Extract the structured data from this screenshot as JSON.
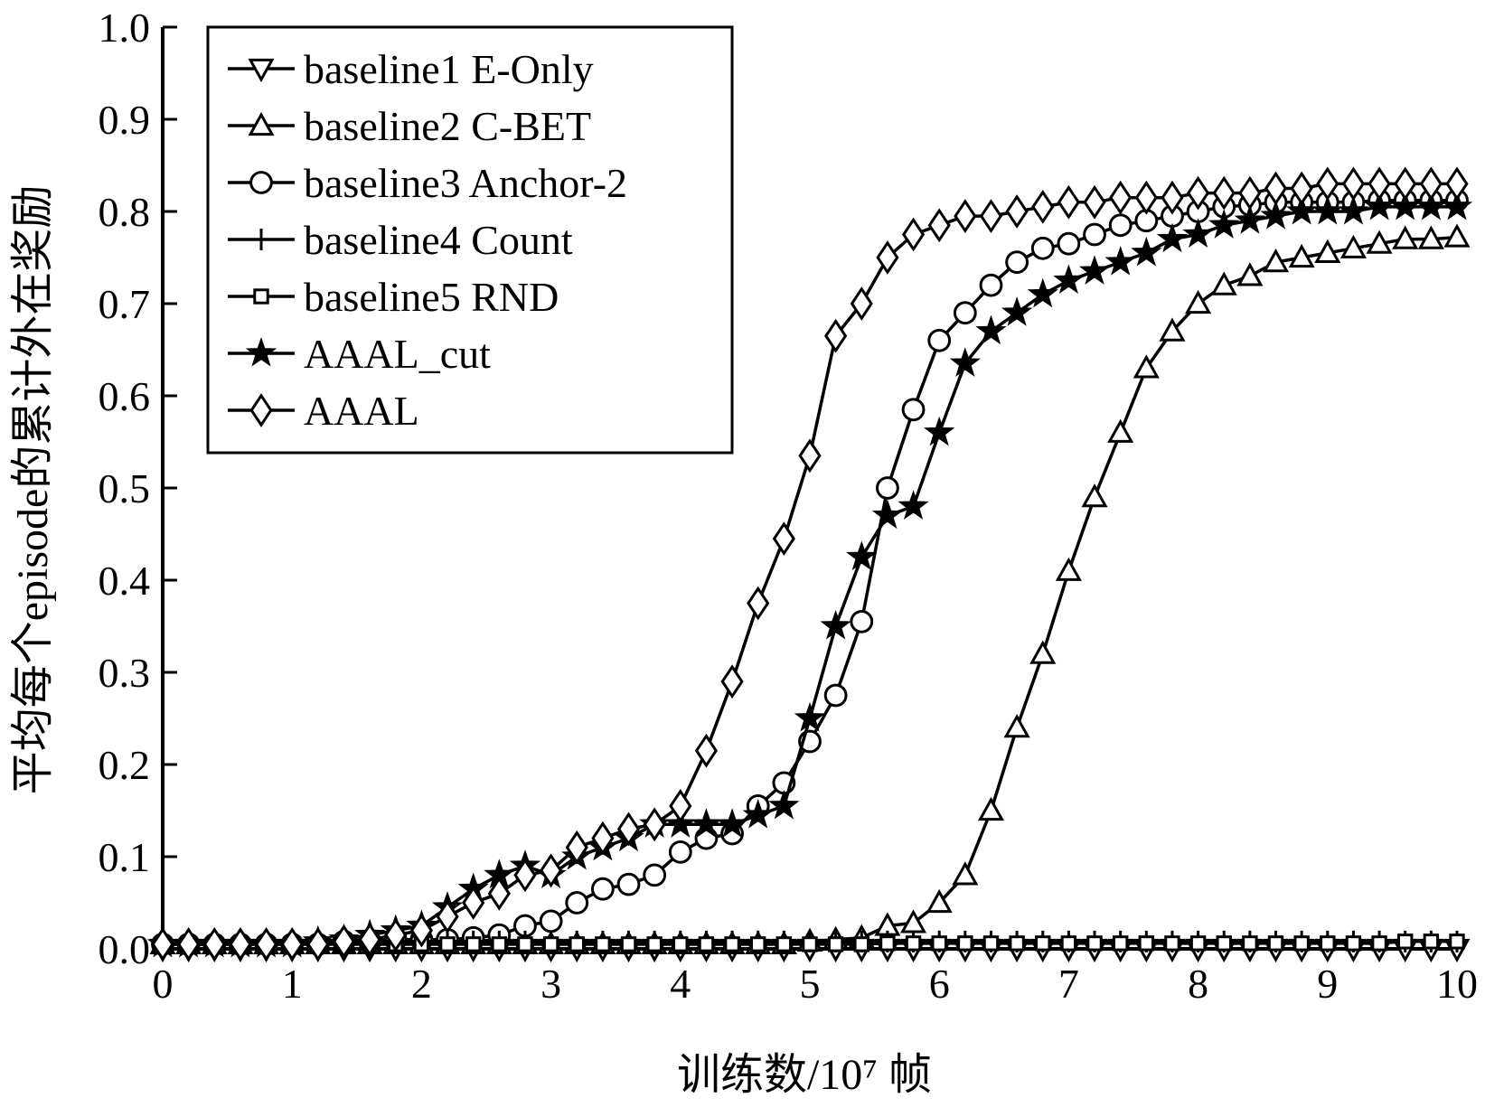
{
  "chart_data": {
    "type": "line",
    "xlabel": "训练数/10⁷ 帧",
    "ylabel": "平均每个episode的累计外在奖励",
    "xlim": [
      0,
      10
    ],
    "ylim": [
      0,
      1.0
    ],
    "x_ticks": [
      "0",
      "1",
      "2",
      "3",
      "4",
      "5",
      "6",
      "7",
      "8",
      "9",
      "10"
    ],
    "y_ticks": [
      "0.0",
      "0.1",
      "0.2",
      "0.3",
      "0.4",
      "0.5",
      "0.6",
      "0.7",
      "0.8",
      "0.9",
      "1.0"
    ],
    "grid": false,
    "legend_position": "top-left",
    "x": [
      0,
      0.2,
      0.4,
      0.6,
      0.8,
      1.0,
      1.2,
      1.4,
      1.6,
      1.8,
      2.0,
      2.2,
      2.4,
      2.6,
      2.8,
      3.0,
      3.2,
      3.4,
      3.6,
      3.8,
      4.0,
      4.2,
      4.4,
      4.6,
      4.8,
      5.0,
      5.2,
      5.4,
      5.6,
      5.8,
      6.0,
      6.2,
      6.4,
      6.6,
      6.8,
      7.0,
      7.2,
      7.4,
      7.6,
      7.8,
      8.0,
      8.2,
      8.4,
      8.6,
      8.8,
      9.0,
      9.2,
      9.4,
      9.6,
      9.8,
      10.0
    ],
    "series": [
      {
        "name": "baseline1 E-Only",
        "marker": "triangle-down",
        "values": [
          0.0,
          0.0,
          0.0,
          0.0,
          0.0,
          0.0,
          0.0,
          0.0,
          0.0,
          0.0,
          0.0,
          0.0,
          0.0,
          0.0,
          0.0,
          0.0,
          0.0,
          0.0,
          0.0,
          0.0,
          0.0,
          0.0,
          0.0,
          0.0,
          0.0,
          0.0,
          0.0,
          0.0,
          0.0,
          0.0,
          0.0,
          0.0,
          0.0,
          0.0,
          0.0,
          0.0,
          0.0,
          0.0,
          0.0,
          0.0,
          0.0,
          0.0,
          0.0,
          0.0,
          0.0,
          0.0,
          0.0,
          0.0,
          0.0,
          0.0,
          0.0
        ]
      },
      {
        "name": "baseline2 C-BET",
        "marker": "triangle-up",
        "values": [
          0.005,
          0.005,
          0.005,
          0.005,
          0.005,
          0.005,
          0.005,
          0.005,
          0.005,
          0.005,
          0.005,
          0.005,
          0.005,
          0.005,
          0.005,
          0.005,
          0.005,
          0.005,
          0.005,
          0.005,
          0.005,
          0.005,
          0.005,
          0.005,
          0.005,
          0.008,
          0.01,
          0.012,
          0.025,
          0.028,
          0.05,
          0.08,
          0.15,
          0.24,
          0.32,
          0.41,
          0.49,
          0.56,
          0.63,
          0.67,
          0.7,
          0.72,
          0.73,
          0.745,
          0.75,
          0.755,
          0.76,
          0.765,
          0.77,
          0.77,
          0.772
        ]
      },
      {
        "name": "baseline3 Anchor-2",
        "marker": "circle",
        "values": [
          0.005,
          0.005,
          0.005,
          0.005,
          0.005,
          0.005,
          0.005,
          0.008,
          0.008,
          0.01,
          0.01,
          0.01,
          0.012,
          0.015,
          0.025,
          0.03,
          0.05,
          0.065,
          0.07,
          0.08,
          0.105,
          0.12,
          0.125,
          0.155,
          0.18,
          0.225,
          0.275,
          0.355,
          0.5,
          0.585,
          0.66,
          0.69,
          0.72,
          0.745,
          0.76,
          0.765,
          0.775,
          0.785,
          0.79,
          0.795,
          0.8,
          0.805,
          0.807,
          0.81,
          0.81,
          0.81,
          0.81,
          0.812,
          0.812,
          0.812,
          0.812
        ]
      },
      {
        "name": "baseline4 Count",
        "marker": "plus",
        "values": [
          0.008,
          0.008,
          0.008,
          0.008,
          0.008,
          0.008,
          0.008,
          0.008,
          0.008,
          0.008,
          0.008,
          0.008,
          0.008,
          0.008,
          0.008,
          0.008,
          0.008,
          0.008,
          0.008,
          0.008,
          0.008,
          0.008,
          0.008,
          0.008,
          0.008,
          0.008,
          0.008,
          0.008,
          0.008,
          0.008,
          0.008,
          0.008,
          0.008,
          0.008,
          0.008,
          0.008,
          0.008,
          0.008,
          0.008,
          0.008,
          0.008,
          0.008,
          0.008,
          0.008,
          0.008,
          0.008,
          0.008,
          0.008,
          0.008,
          0.008,
          0.008
        ]
      },
      {
        "name": "baseline5 RND",
        "marker": "square",
        "values": [
          0.005,
          0.005,
          0.005,
          0.005,
          0.005,
          0.005,
          0.005,
          0.005,
          0.005,
          0.005,
          0.005,
          0.005,
          0.005,
          0.005,
          0.005,
          0.005,
          0.005,
          0.005,
          0.005,
          0.005,
          0.005,
          0.005,
          0.005,
          0.005,
          0.005,
          0.005,
          0.005,
          0.005,
          0.006,
          0.006,
          0.006,
          0.006,
          0.006,
          0.006,
          0.006,
          0.006,
          0.006,
          0.006,
          0.006,
          0.006,
          0.006,
          0.006,
          0.006,
          0.006,
          0.006,
          0.006,
          0.006,
          0.006,
          0.008,
          0.008,
          0.008
        ]
      },
      {
        "name": "AAAL_cut",
        "marker": "star",
        "values": [
          0.005,
          0.005,
          0.005,
          0.005,
          0.005,
          0.005,
          0.008,
          0.01,
          0.015,
          0.02,
          0.025,
          0.045,
          0.065,
          0.08,
          0.09,
          0.08,
          0.1,
          0.11,
          0.12,
          0.135,
          0.135,
          0.135,
          0.135,
          0.145,
          0.155,
          0.25,
          0.35,
          0.425,
          0.47,
          0.48,
          0.56,
          0.635,
          0.67,
          0.69,
          0.71,
          0.725,
          0.735,
          0.745,
          0.755,
          0.77,
          0.775,
          0.785,
          0.79,
          0.795,
          0.8,
          0.8,
          0.8,
          0.805,
          0.805,
          0.805,
          0.805
        ]
      },
      {
        "name": "AAAL",
        "marker": "diamond",
        "values": [
          0.005,
          0.005,
          0.005,
          0.005,
          0.005,
          0.005,
          0.005,
          0.008,
          0.01,
          0.015,
          0.02,
          0.035,
          0.05,
          0.06,
          0.08,
          0.085,
          0.11,
          0.12,
          0.13,
          0.135,
          0.155,
          0.215,
          0.29,
          0.375,
          0.445,
          0.535,
          0.665,
          0.7,
          0.75,
          0.775,
          0.785,
          0.795,
          0.795,
          0.8,
          0.805,
          0.81,
          0.81,
          0.815,
          0.815,
          0.815,
          0.82,
          0.82,
          0.82,
          0.825,
          0.825,
          0.83,
          0.83,
          0.83,
          0.83,
          0.83,
          0.83
        ]
      }
    ]
  }
}
